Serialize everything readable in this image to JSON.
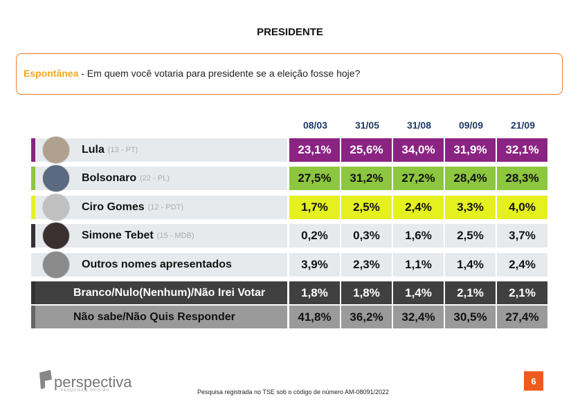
{
  "header": {
    "title": "PRESIDENTE"
  },
  "question": {
    "label": "Espontânea",
    "text": " - Em quem você votaria para presidente se a eleição fosse hoje?"
  },
  "table": {
    "columns": [
      "08/03",
      "31/05",
      "31/08",
      "09/09",
      "21/09"
    ],
    "rows": [
      {
        "name": "Lula",
        "party": "(13 - PT)",
        "values": [
          "23,1%",
          "25,6%",
          "34,0%",
          "31,9%",
          "32,1%"
        ]
      },
      {
        "name": "Bolsonaro",
        "party": "(22 - PL)",
        "values": [
          "27,5%",
          "31,2%",
          "27,2%",
          "28,4%",
          "28,3%"
        ]
      },
      {
        "name": "Ciro Gomes",
        "party": "(12 - PDT)",
        "values": [
          "1,7%",
          "2,5%",
          "2,4%",
          "3,3%",
          "4,0%"
        ]
      },
      {
        "name": "Simone Tebet",
        "party": "(15 - MDB)",
        "values": [
          "0,2%",
          "0,3%",
          "1,6%",
          "2,5%",
          "3,7%"
        ]
      },
      {
        "name": "Outros nomes apresentados",
        "values": [
          "3,9%",
          "2,3%",
          "1,1%",
          "1,4%",
          "2,4%"
        ]
      },
      {
        "name": "Branco/Nulo(Nenhum)/Não Irei Votar",
        "values": [
          "1,8%",
          "1,8%",
          "1,4%",
          "2,1%",
          "2,1%"
        ]
      },
      {
        "name": "Não sabe/Não Quis Responder",
        "values": [
          "41,8%",
          "36,2%",
          "32,4%",
          "30,5%",
          "27,4%"
        ]
      }
    ]
  },
  "footer": {
    "logo": "perspectiva",
    "tagline": "PESQUISA E OPINIÃO",
    "note": "Pesquisa registrada no TSE sob o código de número AM-08091/2022",
    "page": "6"
  }
}
